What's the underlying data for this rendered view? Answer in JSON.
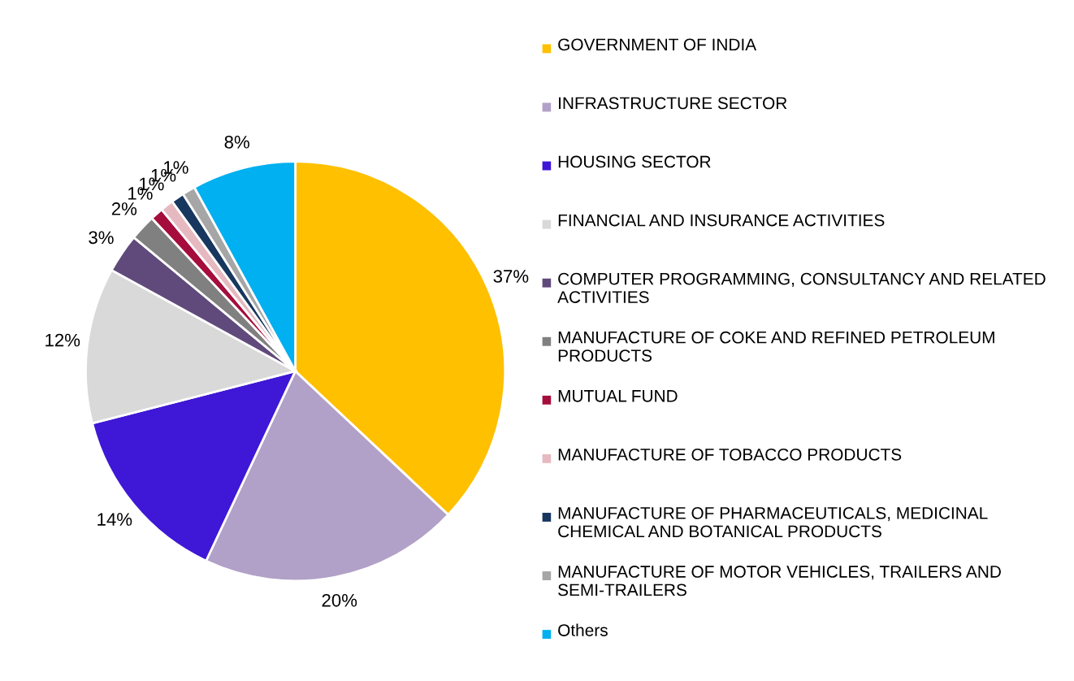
{
  "chart_data": {
    "type": "pie",
    "categories": [
      "GOVERNMENT OF INDIA",
      "INFRASTRUCTURE SECTOR",
      "HOUSING SECTOR",
      "FINANCIAL AND INSURANCE ACTIVITIES",
      "COMPUTER PROGRAMMING, CONSULTANCY AND RELATED ACTIVITIES",
      "MANUFACTURE OF COKE AND REFINED PETROLEUM PRODUCTS",
      "MUTUAL FUND",
      "MANUFACTURE OF TOBACCO PRODUCTS",
      "MANUFACTURE OF PHARMACEUTICALS, MEDICINAL CHEMICAL AND BOTANICAL PRODUCTS",
      "MANUFACTURE OF MOTOR VEHICLES, TRAILERS AND SEMI-TRAILERS",
      "Others"
    ],
    "values": [
      37,
      20,
      14,
      12,
      3,
      2,
      1,
      1,
      1,
      1,
      8
    ],
    "colors": [
      "#ffc000",
      "#b1a0c7",
      "#3f17d6",
      "#d9d9d9",
      "#604a7b",
      "#808080",
      "#a50d3c",
      "#e6b9c0",
      "#17375e",
      "#a6a6a6",
      "#00b0f0"
    ],
    "value_labels": [
      "37%",
      "20%",
      "14%",
      "12%",
      "3%",
      "2%",
      "1%",
      "1%",
      "1%",
      "1%",
      "8%"
    ],
    "legend": "right"
  }
}
